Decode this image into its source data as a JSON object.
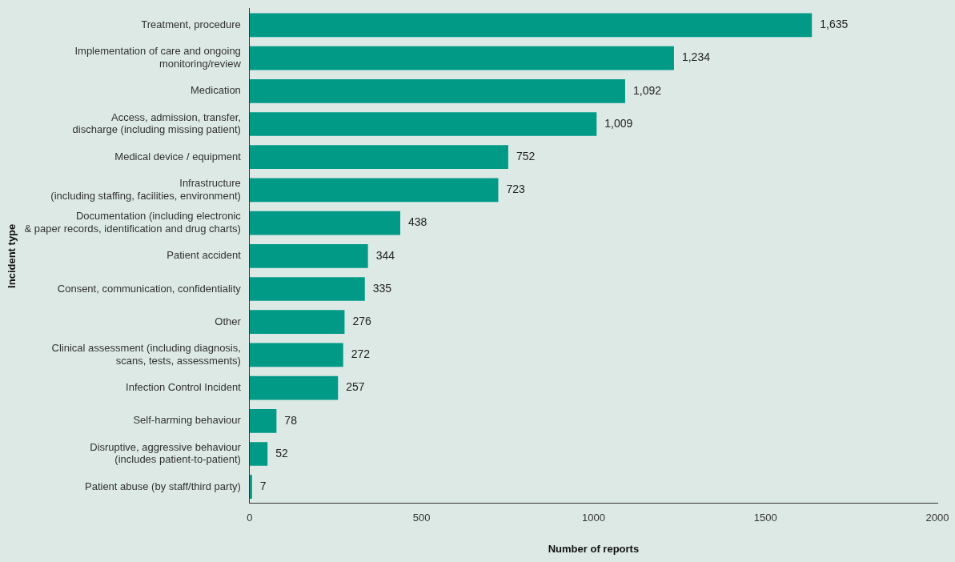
{
  "chart_data": {
    "type": "bar",
    "orientation": "horizontal",
    "xlabel": "Number of reports",
    "ylabel": "Incident type",
    "categories": [
      "Treatment, procedure",
      "Implementation of care and ongoing\nmonitoring/review",
      "Medication",
      "Access, admission, transfer,\ndischarge (including missing patient)",
      "Medical device / equipment",
      "Infrastructure\n(including staffing, facilities, environment)",
      "Documentation (including electronic\n& paper records, identification and drug charts)",
      "Patient accident",
      "Consent, communication, confidentiality",
      "Other",
      "Clinical assessment (including diagnosis,\nscans, tests, assessments)",
      "Infection Control Incident",
      "Self-harming behaviour",
      "Disruptive, aggressive behaviour\n(includes patient-to-patient)",
      "Patient abuse (by staff/third party)"
    ],
    "values": [
      1635,
      1234,
      1092,
      1009,
      752,
      723,
      438,
      344,
      335,
      276,
      272,
      257,
      78,
      52,
      7
    ],
    "value_labels": [
      "1,635",
      "1,234",
      "1,092",
      "1,009",
      "752",
      "723",
      "438",
      "344",
      "335",
      "276",
      "272",
      "257",
      "78",
      "52",
      "7"
    ],
    "color": "#009a87",
    "xlim": [
      0,
      2000
    ],
    "xticks": [
      0,
      500,
      1000,
      1500,
      2000
    ],
    "grid": false,
    "legend": false
  }
}
